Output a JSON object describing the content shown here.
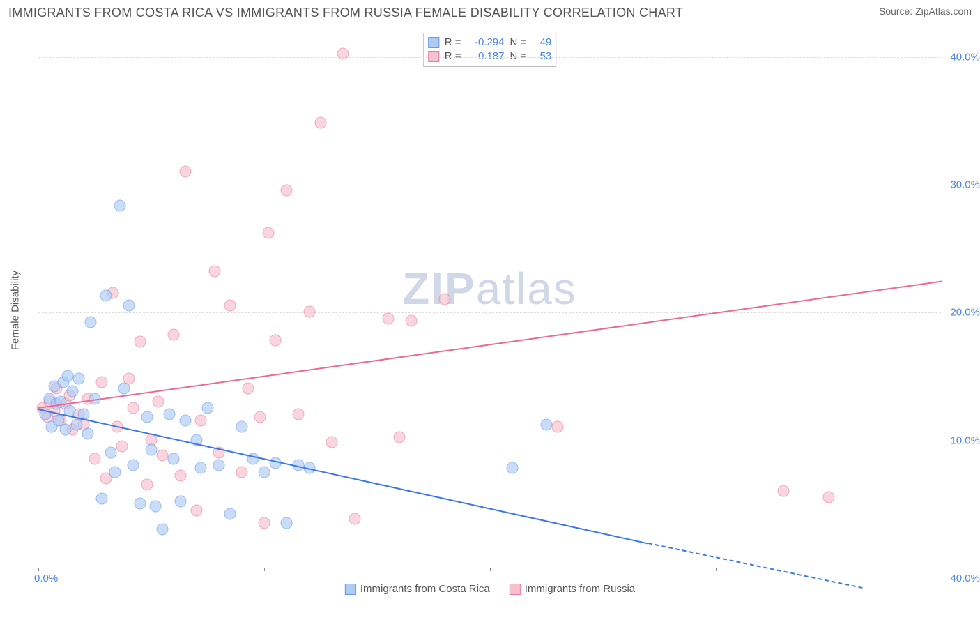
{
  "title": "IMMIGRANTS FROM COSTA RICA VS IMMIGRANTS FROM RUSSIA FEMALE DISABILITY CORRELATION CHART",
  "source": "Source: ZipAtlas.com",
  "ylabel": "Female Disability",
  "watermark_zip": "ZIP",
  "watermark_atlas": "atlas",
  "xlim": [
    0,
    40
  ],
  "ylim": [
    0,
    42
  ],
  "y_ticks": [
    10,
    20,
    30,
    40
  ],
  "y_tick_labels": [
    "10.0%",
    "20.0%",
    "30.0%",
    "40.0%"
  ],
  "x_ticks": [
    0,
    10,
    20,
    30,
    40
  ],
  "x_origin_label": "0.0%",
  "x_max_label": "40.0%",
  "grid_color": "#dddddd",
  "axis_color": "#888888",
  "tick_label_color": "#4a86e8",
  "background_color": "#ffffff",
  "series": {
    "costa_rica": {
      "label": "Immigrants from Costa Rica",
      "fill": "#aecbf5",
      "stroke": "#6699e8",
      "line_color": "#3b78e7",
      "r_label": "R =",
      "r_value": "-0.294",
      "n_label": "N =",
      "n_value": "49",
      "trend": {
        "x1": 0,
        "y1": 12.5,
        "x2": 27,
        "y2": 2.0,
        "dash_x2": 36.5,
        "dash_y2": -1.5
      },
      "points": [
        [
          0.3,
          12.0
        ],
        [
          0.5,
          13.2
        ],
        [
          0.6,
          11.0
        ],
        [
          0.7,
          14.2
        ],
        [
          0.8,
          12.8
        ],
        [
          0.9,
          11.5
        ],
        [
          1.0,
          13.0
        ],
        [
          1.1,
          14.5
        ],
        [
          1.2,
          10.8
        ],
        [
          1.3,
          15.0
        ],
        [
          1.4,
          12.3
        ],
        [
          1.5,
          13.8
        ],
        [
          1.7,
          11.2
        ],
        [
          1.8,
          14.8
        ],
        [
          2.0,
          12.0
        ],
        [
          2.2,
          10.5
        ],
        [
          2.3,
          19.2
        ],
        [
          2.5,
          13.2
        ],
        [
          2.8,
          5.4
        ],
        [
          3.0,
          21.3
        ],
        [
          3.2,
          9.0
        ],
        [
          3.4,
          7.5
        ],
        [
          3.6,
          28.3
        ],
        [
          3.8,
          14.0
        ],
        [
          4.0,
          20.5
        ],
        [
          4.2,
          8.0
        ],
        [
          4.5,
          5.0
        ],
        [
          4.8,
          11.8
        ],
        [
          5.0,
          9.2
        ],
        [
          5.2,
          4.8
        ],
        [
          5.5,
          3.0
        ],
        [
          5.8,
          12.0
        ],
        [
          6.0,
          8.5
        ],
        [
          6.3,
          5.2
        ],
        [
          6.5,
          11.5
        ],
        [
          7.0,
          10.0
        ],
        [
          7.2,
          7.8
        ],
        [
          7.5,
          12.5
        ],
        [
          8.0,
          8.0
        ],
        [
          8.5,
          4.2
        ],
        [
          9.0,
          11.0
        ],
        [
          9.5,
          8.5
        ],
        [
          10.0,
          7.5
        ],
        [
          10.5,
          8.2
        ],
        [
          11.0,
          3.5
        ],
        [
          11.5,
          8.0
        ],
        [
          12.0,
          7.8
        ],
        [
          21.0,
          7.8
        ],
        [
          22.5,
          11.2
        ]
      ]
    },
    "russia": {
      "label": "Immigrants from Russia",
      "fill": "#f7c0cd",
      "stroke": "#ea7ba0",
      "line_color": "#e86a95",
      "r_label": "R =",
      "r_value": "0.187",
      "n_label": "N =",
      "n_value": "53",
      "trend": {
        "x1": 0,
        "y1": 12.6,
        "x2": 40,
        "y2": 22.5
      },
      "points": [
        [
          0.2,
          12.5
        ],
        [
          0.4,
          11.8
        ],
        [
          0.5,
          13.0
        ],
        [
          0.7,
          12.2
        ],
        [
          0.8,
          14.0
        ],
        [
          1.0,
          11.5
        ],
        [
          1.2,
          12.8
        ],
        [
          1.4,
          13.5
        ],
        [
          1.5,
          10.8
        ],
        [
          1.8,
          12.0
        ],
        [
          2.0,
          11.2
        ],
        [
          2.2,
          13.2
        ],
        [
          2.5,
          8.5
        ],
        [
          2.8,
          14.5
        ],
        [
          3.0,
          7.0
        ],
        [
          3.3,
          21.5
        ],
        [
          3.5,
          11.0
        ],
        [
          3.7,
          9.5
        ],
        [
          4.0,
          14.8
        ],
        [
          4.2,
          12.5
        ],
        [
          4.5,
          17.7
        ],
        [
          4.8,
          6.5
        ],
        [
          5.0,
          10.0
        ],
        [
          5.3,
          13.0
        ],
        [
          5.5,
          8.8
        ],
        [
          6.0,
          18.2
        ],
        [
          6.3,
          7.2
        ],
        [
          6.5,
          31.0
        ],
        [
          7.0,
          4.5
        ],
        [
          7.2,
          11.5
        ],
        [
          7.8,
          23.2
        ],
        [
          8.0,
          9.0
        ],
        [
          8.5,
          20.5
        ],
        [
          9.0,
          7.5
        ],
        [
          9.3,
          14.0
        ],
        [
          9.8,
          11.8
        ],
        [
          10.0,
          3.5
        ],
        [
          10.2,
          26.2
        ],
        [
          10.5,
          17.8
        ],
        [
          11.0,
          29.5
        ],
        [
          11.5,
          12.0
        ],
        [
          12.0,
          20.0
        ],
        [
          12.5,
          34.8
        ],
        [
          13.0,
          9.8
        ],
        [
          13.5,
          40.2
        ],
        [
          14.0,
          3.8
        ],
        [
          15.5,
          19.5
        ],
        [
          16.0,
          10.2
        ],
        [
          16.5,
          19.3
        ],
        [
          18.0,
          21.0
        ],
        [
          23.0,
          11.0
        ],
        [
          33.0,
          6.0
        ],
        [
          35.0,
          5.5
        ]
      ]
    }
  }
}
